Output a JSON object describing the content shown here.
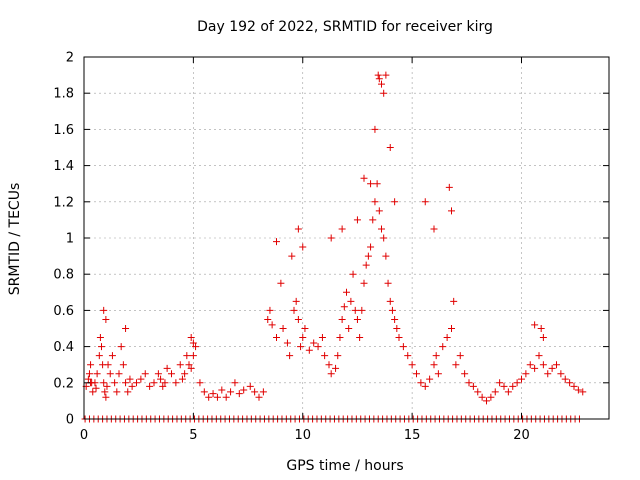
{
  "chart_data": {
    "type": "scatter",
    "title": "Day 192 of 2022, SRMTID for receiver kirg",
    "xlabel": "GPS time / hours",
    "ylabel": "SRMTID / TECUs",
    "xlim": [
      0,
      24
    ],
    "ylim": [
      0,
      2
    ],
    "xticks": [
      0,
      5,
      10,
      15,
      20
    ],
    "xtick_labels": [
      "0",
      "5",
      "10",
      "15",
      "20"
    ],
    "yticks": [
      0,
      0.2,
      0.4,
      0.6,
      0.8,
      1,
      1.2,
      1.4,
      1.6,
      1.8,
      2
    ],
    "ytick_labels": [
      "0",
      "0.2",
      "0.4",
      "0.6",
      "0.8",
      "1",
      "1.2",
      "1.4",
      "1.6",
      "1.8",
      "2"
    ],
    "grid": true,
    "marker": "+",
    "color": "#e00000",
    "series": [
      {
        "name": "SRMTID",
        "x": [
          0.1,
          0.2,
          0.25,
          0.3,
          0.35,
          0.4,
          0.5,
          0.55,
          0.6,
          0.7,
          0.75,
          0.8,
          0.85,
          0.9,
          0.95,
          1.0,
          1.05,
          1.1,
          1.2,
          1.3,
          1.4,
          1.5,
          1.6,
          1.7,
          1.8,
          1.9,
          2.0,
          2.1,
          2.2,
          2.4,
          2.6,
          2.8,
          3.0,
          3.2,
          3.4,
          3.5,
          3.6,
          3.7,
          3.8,
          4.0,
          4.2,
          4.4,
          4.5,
          4.6,
          4.7,
          4.8,
          4.9,
          5.0,
          5.1,
          5.3,
          5.5,
          5.7,
          5.9,
          6.1,
          6.3,
          6.5,
          6.7,
          6.9,
          7.1,
          7.3,
          7.6,
          7.8,
          8.0,
          8.2,
          8.4,
          8.5,
          8.6,
          8.8,
          9.0,
          9.1,
          9.3,
          9.4,
          9.6,
          9.7,
          9.8,
          9.9,
          10.0,
          10.1,
          10.3,
          10.5,
          10.7,
          10.9,
          11.0,
          11.2,
          11.3,
          11.5,
          11.6,
          11.7,
          11.8,
          11.9,
          12.0,
          12.1,
          12.2,
          12.3,
          12.4,
          12.5,
          12.6,
          12.7,
          12.8,
          12.9,
          13.0,
          13.1,
          13.2,
          13.3,
          13.4,
          13.5,
          13.6,
          13.7,
          13.8,
          13.9,
          14.0,
          14.1,
          14.2,
          14.3,
          14.4,
          14.6,
          14.8,
          15.0,
          15.2,
          15.4,
          15.6,
          15.8,
          16.0,
          16.1,
          16.2,
          16.4,
          16.6,
          16.8,
          17.0,
          17.2,
          17.4,
          17.6,
          17.8,
          18.0,
          18.2,
          18.4,
          18.6,
          18.8,
          19.0,
          19.2,
          19.4,
          19.6,
          19.8,
          20.0,
          20.2,
          20.4,
          20.6,
          20.8,
          21.0,
          21.2,
          21.4,
          21.6,
          21.8,
          22.0,
          22.2,
          22.4,
          22.6,
          22.8,
          0.3,
          0.9,
          1.0,
          1.9,
          4.9,
          5.0,
          8.8,
          9.5,
          9.8,
          10.0,
          11.3,
          11.8,
          12.5,
          12.8,
          13.1,
          13.3,
          13.45,
          13.5,
          13.6,
          13.7,
          13.8,
          14.0,
          14.2,
          15.6,
          16.0,
          16.7,
          16.8,
          16.9,
          20.6,
          20.9,
          21.0
        ],
        "y": [
          0.18,
          0.22,
          0.25,
          0.3,
          0.2,
          0.15,
          0.2,
          0.17,
          0.25,
          0.35,
          0.45,
          0.4,
          0.3,
          0.2,
          0.15,
          0.12,
          0.18,
          0.3,
          0.25,
          0.35,
          0.2,
          0.15,
          0.25,
          0.4,
          0.3,
          0.2,
          0.15,
          0.22,
          0.18,
          0.2,
          0.22,
          0.25,
          0.18,
          0.2,
          0.25,
          0.22,
          0.18,
          0.2,
          0.28,
          0.25,
          0.2,
          0.3,
          0.22,
          0.25,
          0.35,
          0.3,
          0.28,
          0.35,
          0.4,
          0.2,
          0.15,
          0.12,
          0.14,
          0.12,
          0.16,
          0.12,
          0.15,
          0.2,
          0.14,
          0.16,
          0.18,
          0.15,
          0.12,
          0.15,
          0.55,
          0.6,
          0.52,
          0.45,
          0.75,
          0.5,
          0.42,
          0.35,
          0.6,
          0.65,
          0.55,
          0.4,
          0.45,
          0.5,
          0.38,
          0.42,
          0.4,
          0.45,
          0.35,
          0.3,
          0.25,
          0.28,
          0.35,
          0.45,
          0.55,
          0.62,
          0.7,
          0.5,
          0.65,
          0.8,
          0.6,
          0.55,
          0.45,
          0.6,
          0.75,
          0.85,
          0.9,
          0.95,
          1.1,
          1.2,
          1.3,
          1.15,
          1.05,
          1.0,
          0.9,
          0.75,
          0.65,
          0.6,
          0.55,
          0.5,
          0.45,
          0.4,
          0.35,
          0.3,
          0.25,
          0.2,
          0.18,
          0.22,
          0.3,
          0.35,
          0.25,
          0.4,
          0.45,
          0.5,
          0.3,
          0.35,
          0.25,
          0.2,
          0.18,
          0.15,
          0.12,
          0.1,
          0.12,
          0.15,
          0.2,
          0.18,
          0.15,
          0.18,
          0.2,
          0.22,
          0.25,
          0.3,
          0.28,
          0.35,
          0.3,
          0.25,
          0.28,
          0.3,
          0.25,
          0.22,
          0.2,
          0.18,
          0.16,
          0.15,
          0.2,
          0.6,
          0.55,
          0.5,
          0.45,
          0.42,
          0.98,
          0.9,
          1.05,
          0.95,
          1.0,
          1.05,
          1.1,
          1.33,
          1.3,
          1.6,
          1.9,
          1.88,
          1.85,
          1.8,
          1.9,
          1.5,
          1.2,
          1.2,
          1.05,
          1.28,
          1.15,
          0.65,
          0.52,
          0.5,
          0.45
        ]
      },
      {
        "name": "zero baseline",
        "x": [
          0.05,
          0.25,
          0.45,
          0.65,
          0.85,
          1.05,
          1.25,
          1.45,
          1.65,
          1.85,
          2.05,
          2.25,
          2.45,
          2.65,
          2.85,
          3.05,
          3.25,
          3.45,
          3.65,
          3.85,
          4.05,
          4.25,
          4.45,
          4.65,
          4.85,
          5.05,
          5.25,
          5.45,
          5.65,
          5.85,
          6.05,
          6.25,
          6.45,
          6.65,
          6.85,
          7.05,
          7.25,
          7.45,
          7.65,
          7.85,
          8.05,
          8.25,
          8.45,
          8.65,
          8.85,
          9.05,
          9.25,
          9.45,
          9.65,
          9.85,
          10.05,
          10.25,
          10.45,
          10.65,
          10.85,
          11.05,
          11.25,
          11.45,
          11.65,
          11.85,
          12.05,
          12.25,
          12.45,
          12.65,
          12.85,
          13.05,
          13.25,
          13.45,
          13.65,
          13.85,
          14.05,
          14.25,
          14.45,
          14.65,
          14.85,
          15.05,
          15.25,
          15.45,
          15.65,
          15.85,
          16.05,
          16.25,
          16.45,
          16.65,
          16.85,
          17.05,
          17.25,
          17.45,
          17.65,
          17.85,
          18.05,
          18.25,
          18.45,
          18.65,
          18.85,
          19.05,
          19.25,
          19.45,
          19.65,
          19.85,
          20.05,
          20.25,
          20.45,
          20.65,
          20.85,
          21.05,
          21.25,
          21.45,
          21.65,
          21.85,
          22.05,
          22.25,
          22.45,
          22.65
        ],
        "y": [
          0,
          0,
          0,
          0,
          0,
          0,
          0,
          0,
          0,
          0,
          0,
          0,
          0,
          0,
          0,
          0,
          0,
          0,
          0,
          0,
          0,
          0,
          0,
          0,
          0,
          0,
          0,
          0,
          0,
          0,
          0,
          0,
          0,
          0,
          0,
          0,
          0,
          0,
          0,
          0,
          0,
          0,
          0,
          0,
          0,
          0,
          0,
          0,
          0,
          0,
          0,
          0,
          0,
          0,
          0,
          0,
          0,
          0,
          0,
          0,
          0,
          0,
          0,
          0,
          0,
          0,
          0,
          0,
          0,
          0,
          0,
          0,
          0,
          0,
          0,
          0,
          0,
          0,
          0,
          0,
          0,
          0,
          0,
          0,
          0,
          0,
          0,
          0,
          0,
          0,
          0,
          0,
          0,
          0,
          0,
          0,
          0,
          0,
          0,
          0,
          0,
          0,
          0,
          0,
          0,
          0,
          0,
          0,
          0,
          0,
          0,
          0,
          0,
          0
        ]
      }
    ]
  }
}
